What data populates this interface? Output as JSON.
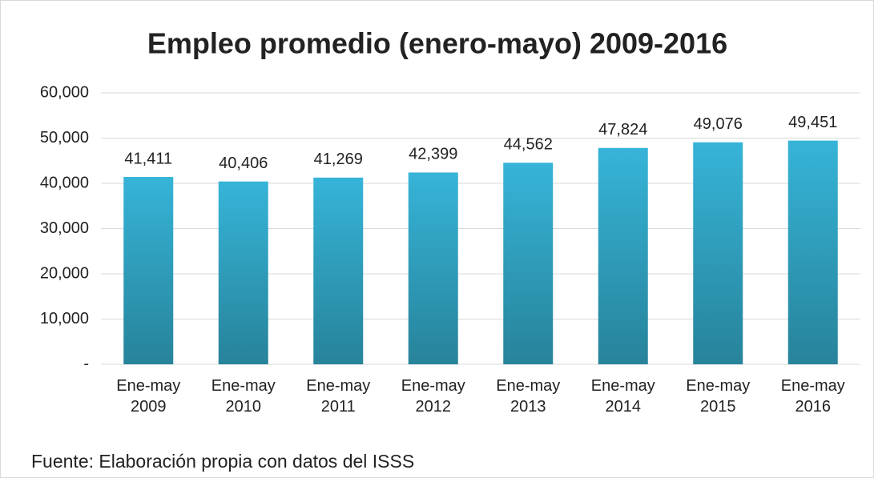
{
  "chart_data": {
    "type": "bar",
    "title": "Empleo promedio (enero-mayo) 2009-2016",
    "categories": [
      "Ene-may 2009",
      "Ene-may 2010",
      "Ene-may 2011",
      "Ene-may 2012",
      "Ene-may 2013",
      "Ene-may 2014",
      "Ene-may 2015",
      "Ene-may 2016"
    ],
    "values": [
      41411,
      40406,
      41269,
      42399,
      44562,
      47824,
      49076,
      49451
    ],
    "value_labels": [
      "41,411",
      "40,406",
      "41,269",
      "42,399",
      "44,562",
      "47,824",
      "49,076",
      "49,451"
    ],
    "color": "#36b4d8",
    "ylim": [
      0,
      60000
    ],
    "yticks": [
      {
        "value": 0,
        "label": "-"
      },
      {
        "value": 10000,
        "label": "10,000"
      },
      {
        "value": 20000,
        "label": "20,000"
      },
      {
        "value": 30000,
        "label": "30,000"
      },
      {
        "value": 40000,
        "label": "40,000"
      },
      {
        "value": 50000,
        "label": "50,000"
      },
      {
        "value": 60000,
        "label": "60,000"
      }
    ],
    "grid": true,
    "source": "Fuente: Elaboración propia con datos del ISSS"
  }
}
